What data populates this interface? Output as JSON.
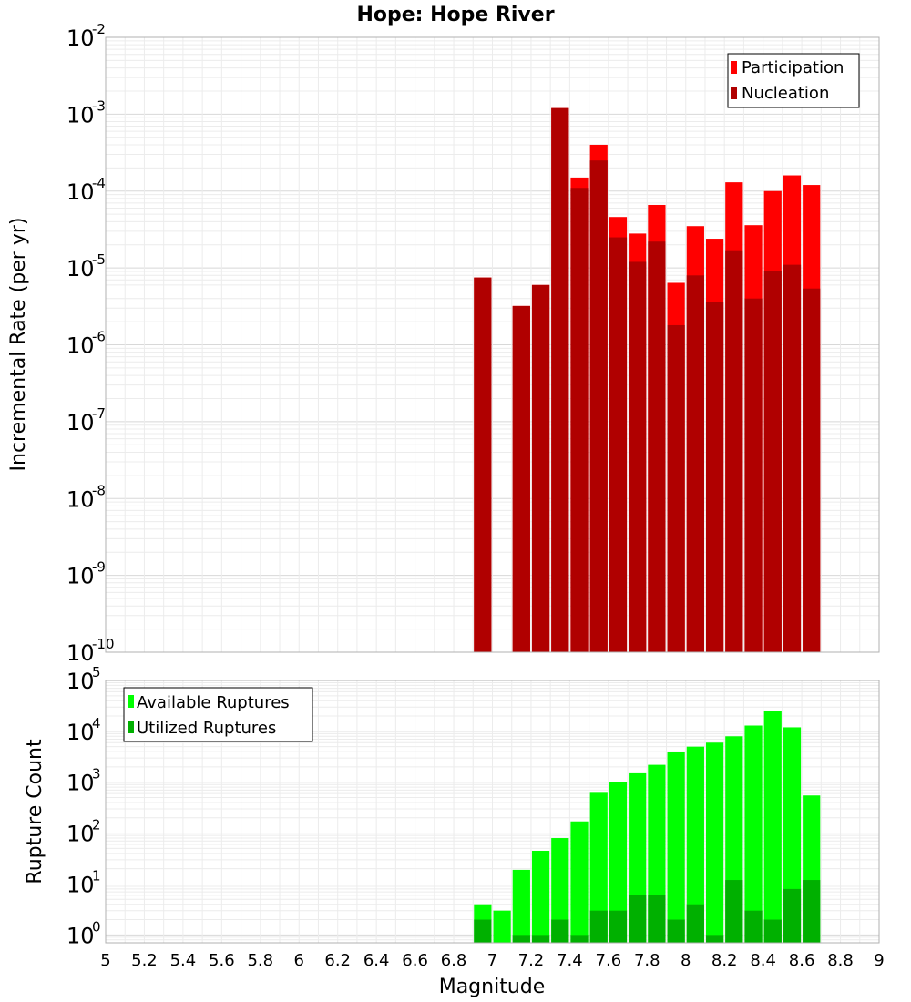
{
  "chart_data": [
    {
      "type": "bar",
      "title": "Hope: Hope River",
      "xlabel": "Magnitude",
      "ylabel": "Incremental Rate (per yr)",
      "xlim": [
        5,
        9
      ],
      "ylim": [
        1e-10,
        0.01
      ],
      "yscale": "log",
      "ytick_exponents": [
        -10,
        -9,
        -8,
        -7,
        -6,
        -5,
        -4,
        -3,
        -2
      ],
      "grid": true,
      "legend_position": "top-right",
      "x": [
        6.95,
        7.15,
        7.25,
        7.35,
        7.45,
        7.55,
        7.65,
        7.75,
        7.85,
        7.95,
        8.05,
        8.15,
        8.25,
        8.35,
        8.45,
        8.55,
        8.65
      ],
      "series": [
        {
          "name": "Participation",
          "color": "#ff0000",
          "values": [
            7.5e-06,
            3.2e-06,
            6e-06,
            0.0012,
            0.00015,
            0.0004,
            4.6e-05,
            2.8e-05,
            6.6e-05,
            6.4e-06,
            3.5e-05,
            2.4e-05,
            0.00013,
            3.6e-05,
            0.0001,
            0.00016,
            0.00012
          ]
        },
        {
          "name": "Nucleation",
          "color": "#b00000",
          "values": [
            7.5e-06,
            3.2e-06,
            6e-06,
            0.0012,
            0.00011,
            0.00025,
            2.5e-05,
            1.2e-05,
            2.2e-05,
            1.8e-06,
            8e-06,
            3.6e-06,
            1.7e-05,
            4e-06,
            9e-06,
            1.1e-05,
            5.4e-06
          ]
        }
      ]
    },
    {
      "type": "bar",
      "xlabel": "Magnitude",
      "ylabel": "Rupture Count",
      "xlim": [
        5,
        9
      ],
      "ylim": [
        0.7,
        100000
      ],
      "yscale": "log",
      "ytick_exponents": [
        0,
        1,
        2,
        3,
        4,
        5
      ],
      "xticks": [
        "5",
        "5.2",
        "5.4",
        "5.6",
        "5.8",
        "6",
        "6.2",
        "6.4",
        "6.6",
        "6.8",
        "7",
        "7.2",
        "7.4",
        "7.6",
        "7.8",
        "8",
        "8.2",
        "8.4",
        "8.6",
        "8.8",
        "9"
      ],
      "grid": true,
      "legend_position": "top-left",
      "x": [
        6.95,
        7.05,
        7.15,
        7.25,
        7.35,
        7.45,
        7.55,
        7.65,
        7.75,
        7.85,
        7.95,
        8.05,
        8.15,
        8.25,
        8.35,
        8.45,
        8.55,
        8.65
      ],
      "series": [
        {
          "name": "Available Ruptures",
          "color": "#00ff00",
          "values": [
            4,
            3,
            19,
            45,
            80,
            170,
            620,
            1000,
            1500,
            2200,
            4000,
            5000,
            6000,
            8000,
            13000,
            25000,
            12000,
            550
          ]
        },
        {
          "name": "Utilized Ruptures",
          "color": "#00b000",
          "values": [
            2,
            0,
            1,
            1,
            2,
            1,
            3,
            3,
            6,
            6,
            2,
            4,
            1,
            12,
            3,
            2,
            8,
            12
          ]
        }
      ]
    }
  ]
}
